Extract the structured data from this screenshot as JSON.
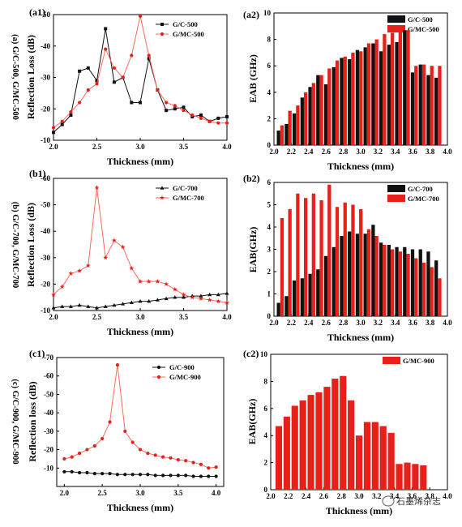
{
  "colors": {
    "black": "#111111",
    "red": "#e8201a",
    "red_light": "#ff6a5c",
    "background": "#ffffff"
  },
  "watermark": {
    "icon": "wechat-bubble-icon",
    "text": "石墨烯杂志"
  },
  "chart_data": [
    {
      "id": "a1",
      "type": "line",
      "panel_label": "(a1)",
      "side_label": "(a) G/C-500, G/MC-500",
      "xlabel": "Thickness (mm)",
      "ylabel": "Reflection Loss (dB)",
      "xlim": [
        2.0,
        4.0
      ],
      "ylim": [
        -10,
        -50
      ],
      "xticks": [
        "2.0",
        "2.5",
        "3.0",
        "3.5",
        "4.0"
      ],
      "yticks": [
        "-10",
        "-20",
        "-30",
        "-40",
        "-50"
      ],
      "legend_position": "top-right",
      "x": [
        2.0,
        2.1,
        2.2,
        2.3,
        2.4,
        2.5,
        2.6,
        2.7,
        2.8,
        2.9,
        3.0,
        3.1,
        3.2,
        3.3,
        3.4,
        3.5,
        3.6,
        3.7,
        3.8,
        3.9,
        4.0
      ],
      "series": [
        {
          "name": "G/C-500",
          "color": "black",
          "marker": "square",
          "values": [
            -12.5,
            -15,
            -18,
            -32,
            -33,
            -29,
            -45.5,
            -28.5,
            -30,
            -22,
            -22,
            -36,
            -26,
            -19.5,
            -20,
            -20.5,
            -17.5,
            -18,
            -16,
            -17,
            -17.5
          ]
        },
        {
          "name": "G/MC-500",
          "color": "red",
          "marker": "circle",
          "values": [
            -14,
            -16,
            -19,
            -22,
            -26,
            -28,
            -39,
            -33,
            -30,
            -37,
            -49.5,
            -37,
            -26,
            -22,
            -21,
            -19.5,
            -18,
            -17,
            -16,
            -15.5,
            -15.5
          ]
        }
      ]
    },
    {
      "id": "a2",
      "type": "bar",
      "panel_label": "(a2)",
      "xlabel": "Thickness (mm)",
      "ylabel": "EAB (GHz)",
      "xlim": [
        2.0,
        4.0
      ],
      "ylim": [
        0,
        10
      ],
      "xticks": [
        "2.0",
        "2.2",
        "2.4",
        "2.6",
        "2.8",
        "3.0",
        "3.2",
        "3.4",
        "3.6",
        "3.8",
        "4.0"
      ],
      "yticks": [
        "0",
        "2",
        "4",
        "6",
        "8",
        "10"
      ],
      "legend_position": "top-right",
      "categories": [
        2.0,
        2.1,
        2.2,
        2.3,
        2.4,
        2.5,
        2.6,
        2.7,
        2.8,
        2.9,
        3.0,
        3.1,
        3.2,
        3.3,
        3.4,
        3.5,
        3.6,
        3.7,
        3.8,
        3.9,
        4.0
      ],
      "series": [
        {
          "name": "G/C-500",
          "color": "black",
          "values": [
            1.1,
            1.6,
            2.4,
            3.6,
            4.4,
            5.3,
            4.6,
            5.9,
            6.6,
            6.5,
            7.2,
            7.4,
            7.7,
            7.1,
            7.6,
            7.8,
            8.7,
            5.5,
            6.1,
            5.3,
            5.1
          ]
        },
        {
          "name": "G/MC-500",
          "color": "red",
          "values": [
            1.5,
            2.6,
            3.0,
            4.0,
            4.7,
            5.3,
            5.8,
            6.4,
            6.7,
            7.0,
            7.1,
            7.7,
            8.0,
            8.4,
            8.5,
            8.9,
            8.7,
            6.0,
            6.1,
            6.0,
            6.0
          ]
        }
      ]
    },
    {
      "id": "b1",
      "type": "line",
      "panel_label": "(b1)",
      "side_label": "(b) G/C-700, G/MC-700",
      "xlabel": "Thickness (mm)",
      "ylabel": "Reflection Loss (dB)",
      "xlim": [
        2.0,
        4.0
      ],
      "ylim": [
        -10,
        -60
      ],
      "xticks": [
        "2.0",
        "2.5",
        "3.0",
        "3.5",
        "4.0"
      ],
      "yticks": [
        "-10",
        "-20",
        "-30",
        "-40",
        "-50",
        "-60"
      ],
      "legend_position": "top-right",
      "x": [
        2.0,
        2.1,
        2.2,
        2.3,
        2.4,
        2.5,
        2.6,
        2.7,
        2.8,
        2.9,
        3.0,
        3.1,
        3.2,
        3.3,
        3.4,
        3.5,
        3.6,
        3.7,
        3.8,
        3.9,
        4.0
      ],
      "series": [
        {
          "name": "G/C-700",
          "color": "black",
          "marker": "triangle",
          "values": [
            -11,
            -11.5,
            -11.5,
            -12,
            -11.5,
            -11,
            -11.5,
            -12,
            -12.5,
            -13,
            -13.5,
            -13.5,
            -14,
            -14.5,
            -15,
            -15,
            -15.5,
            -15.5,
            -16,
            -16,
            -16.5
          ]
        },
        {
          "name": "G/MC-700",
          "color": "red",
          "marker": "star",
          "values": [
            -16,
            -19,
            -24,
            -25,
            -27,
            -56.5,
            -30,
            -36.5,
            -34,
            -26,
            -21,
            -21,
            -21,
            -20,
            -18,
            -16,
            -15,
            -14.5,
            -14,
            -13.5,
            -13
          ]
        }
      ]
    },
    {
      "id": "b2",
      "type": "bar",
      "panel_label": "(b2)",
      "xlabel": "Thickness (mm)",
      "ylabel": "EAB(GHz)",
      "xlim": [
        2.0,
        4.0
      ],
      "ylim": [
        0,
        6
      ],
      "xticks": [
        "2.0",
        "2.2",
        "2.4",
        "2.6",
        "2.8",
        "3.0",
        "3.2",
        "3.4",
        "3.6",
        "3.8",
        "4.0"
      ],
      "yticks": [
        "0",
        "1",
        "2",
        "3",
        "4",
        "5",
        "6"
      ],
      "legend_position": "top-right",
      "categories": [
        2.0,
        2.1,
        2.2,
        2.3,
        2.4,
        2.5,
        2.6,
        2.7,
        2.8,
        2.9,
        3.0,
        3.1,
        3.2,
        3.3,
        3.4,
        3.5,
        3.6,
        3.7,
        3.8,
        3.9,
        4.0
      ],
      "series": [
        {
          "name": "G/C-700",
          "color": "black",
          "values": [
            0.6,
            0.9,
            1.6,
            1.7,
            1.9,
            2.1,
            2.7,
            3.1,
            3.6,
            3.8,
            3.7,
            3.7,
            4.1,
            3.3,
            3.2,
            3.1,
            3.1,
            3.0,
            3.0,
            2.9,
            2.5
          ]
        },
        {
          "name": "G/MC-700",
          "color": "red",
          "values": [
            4.4,
            4.8,
            5.5,
            5.3,
            5.5,
            5.2,
            5.9,
            4.9,
            5.1,
            5.0,
            4.8,
            3.9,
            3.6,
            3.2,
            3.0,
            2.9,
            2.8,
            2.6,
            2.4,
            2.2,
            1.7
          ]
        }
      ]
    },
    {
      "id": "c1",
      "type": "line",
      "panel_label": "(c1)",
      "side_label": "(c) G/C-900, G/MC-900",
      "xlabel": "Thickness (mm)",
      "ylabel": "Reflection loss (dB)",
      "xlim": [
        1.9,
        4.1
      ],
      "ylim": [
        0,
        -70
      ],
      "xticks": [
        "2.0",
        "2.5",
        "3.0",
        "3.5",
        "4.0"
      ],
      "yticks": [
        "-10",
        "-20",
        "-30",
        "-40",
        "-50",
        "-60",
        "-70"
      ],
      "legend_position": "top-right",
      "x": [
        2.0,
        2.1,
        2.2,
        2.3,
        2.4,
        2.5,
        2.6,
        2.7,
        2.8,
        2.9,
        3.0,
        3.1,
        3.2,
        3.3,
        3.4,
        3.5,
        3.6,
        3.7,
        3.8,
        3.9,
        4.0
      ],
      "series": [
        {
          "name": "G/C-900",
          "color": "black",
          "marker": "circle",
          "values": [
            -8,
            -8,
            -7.5,
            -7.5,
            -7,
            -7,
            -7,
            -6.5,
            -6.5,
            -6.5,
            -6.5,
            -6.5,
            -6,
            -6,
            -6,
            -6,
            -6,
            -5.5,
            -5.5,
            -5.5,
            -5.5
          ]
        },
        {
          "name": "G/MC-900",
          "color": "red",
          "marker": "circle",
          "values": [
            -15,
            -16,
            -18,
            -20,
            -22,
            -26,
            -35,
            -66,
            -30,
            -24,
            -20,
            -18,
            -17,
            -16,
            -15.5,
            -14.5,
            -14,
            -13,
            -12,
            -10,
            -10.5
          ]
        }
      ]
    },
    {
      "id": "c2",
      "type": "bar",
      "panel_label": "(c2)",
      "xlabel": "Thickness (mm)",
      "ylabel": "EAB(GHz)",
      "xlim": [
        2.0,
        4.0
      ],
      "ylim": [
        0,
        10
      ],
      "xticks": [
        "2.0",
        "2.2",
        "2.4",
        "2.6",
        "2.8",
        "3.0",
        "3.2",
        "3.4",
        "3.6",
        "3.8",
        "4.0"
      ],
      "yticks": [
        "0",
        "2",
        "4",
        "6",
        "8",
        "10"
      ],
      "legend_position": "top-right",
      "categories": [
        2.0,
        2.1,
        2.2,
        2.3,
        2.4,
        2.5,
        2.6,
        2.7,
        2.8,
        2.9,
        3.0,
        3.1,
        3.2,
        3.3,
        3.4,
        3.5,
        3.6,
        3.7,
        3.8,
        3.9,
        4.0
      ],
      "series": [
        {
          "name": "G/MC-900",
          "color": "red",
          "values": [
            4.7,
            5.4,
            6.2,
            6.6,
            7.0,
            7.2,
            7.6,
            8.2,
            8.4,
            6.6,
            4.0,
            5.0,
            5.0,
            4.7,
            4.2,
            1.9,
            2.0,
            1.9,
            1.8,
            0,
            0
          ]
        }
      ]
    }
  ]
}
